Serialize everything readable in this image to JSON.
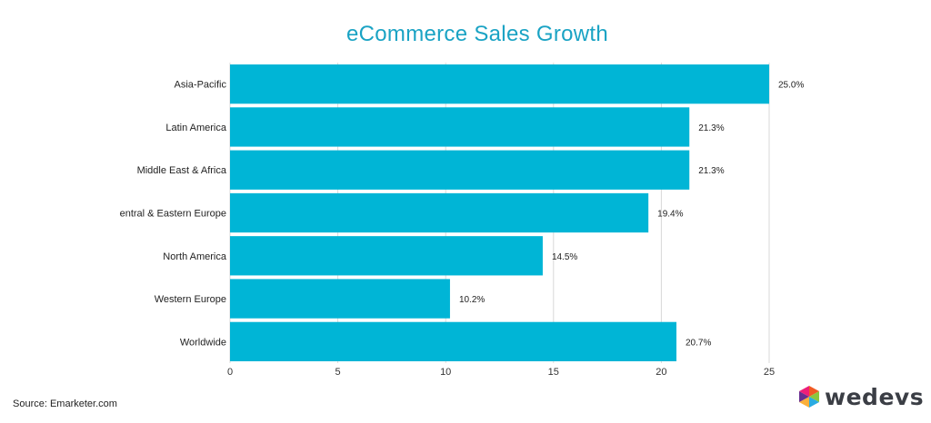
{
  "source_note": "Source: Emarketer.com",
  "brand": {
    "name": "wedevs"
  },
  "colors": {
    "bar": "#00b5d6",
    "title": "#1aa3c4",
    "grid": "#d9d9d9"
  },
  "chart_data": {
    "type": "bar",
    "orientation": "horizontal",
    "title": "eCommerce Sales Growth",
    "categories": [
      "Asia-Pacific",
      "Latin America",
      "Middle East & Africa",
      "entral & Eastern Europe",
      "North America",
      "Western Europe",
      "Worldwide"
    ],
    "values": [
      25.0,
      21.3,
      21.3,
      19.4,
      14.5,
      10.2,
      20.7
    ],
    "value_labels": [
      "25.0%",
      "21.3%",
      "21.3%",
      "19.4%",
      "14.5%",
      "10.2%",
      "20.7%"
    ],
    "xlim": [
      0,
      25
    ],
    "xticks": [
      0,
      5,
      10,
      15,
      20,
      25
    ],
    "grid": true,
    "legend": "none"
  }
}
